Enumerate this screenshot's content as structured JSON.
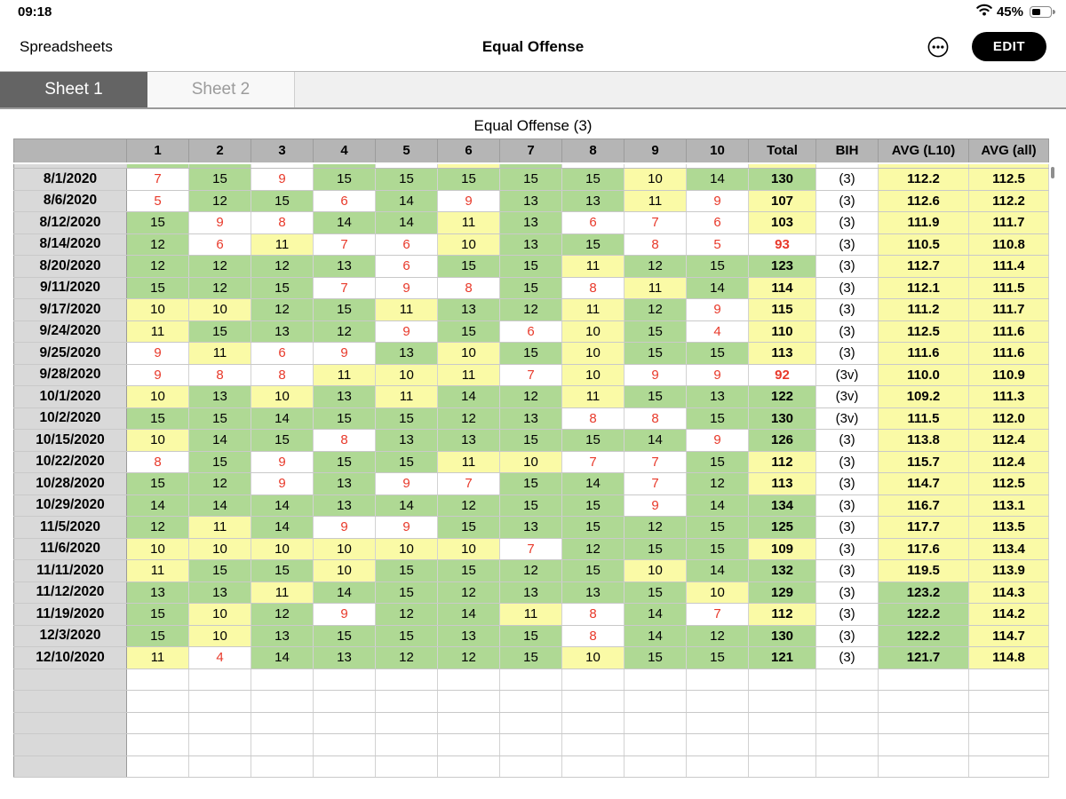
{
  "status_bar": {
    "time": "09:18",
    "battery_label": "45%",
    "wifi_icon": "wifi-icon",
    "battery_icon": "battery-icon"
  },
  "nav": {
    "back_label": "Spreadsheets",
    "title": "Equal Offense",
    "more_icon": "ellipsis-circle-icon",
    "edit_label": "EDIT"
  },
  "tabs": [
    {
      "label": "Sheet 1",
      "selected": true
    },
    {
      "label": "Sheet 2",
      "selected": false
    }
  ],
  "sheet": {
    "title": "Equal Offense (3)",
    "columns": [
      "",
      "1",
      "2",
      "3",
      "4",
      "5",
      "6",
      "7",
      "8",
      "9",
      "10",
      "Total",
      "BIH",
      "AVG (L10)",
      "AVG (all)"
    ],
    "scrolled_row_colors": [
      "D",
      "G",
      "G",
      "W",
      "G",
      "W",
      "Y",
      "G",
      "W",
      "W",
      "W",
      "Y",
      "W",
      "Y",
      "Y"
    ],
    "rows": [
      {
        "date": "8/1/2020",
        "scores": [
          7,
          15,
          9,
          15,
          15,
          15,
          15,
          15,
          10,
          14
        ],
        "total": 130,
        "bih": "(3)",
        "avg_l10": "112.2",
        "avg_all": "112.5"
      },
      {
        "date": "8/6/2020",
        "scores": [
          5,
          12,
          15,
          6,
          14,
          9,
          13,
          13,
          11,
          9
        ],
        "total": 107,
        "bih": "(3)",
        "avg_l10": "112.6",
        "avg_all": "112.2"
      },
      {
        "date": "8/12/2020",
        "scores": [
          15,
          9,
          8,
          14,
          14,
          11,
          13,
          6,
          7,
          6
        ],
        "total": 103,
        "bih": "(3)",
        "avg_l10": "111.9",
        "avg_all": "111.7"
      },
      {
        "date": "8/14/2020",
        "scores": [
          12,
          6,
          11,
          7,
          6,
          10,
          13,
          15,
          8,
          5
        ],
        "total": 93,
        "bih": "(3)",
        "avg_l10": "110.5",
        "avg_all": "110.8"
      },
      {
        "date": "8/20/2020",
        "scores": [
          12,
          12,
          12,
          13,
          6,
          15,
          15,
          11,
          12,
          15
        ],
        "total": 123,
        "bih": "(3)",
        "avg_l10": "112.7",
        "avg_all": "111.4"
      },
      {
        "date": "9/11/2020",
        "scores": [
          15,
          12,
          15,
          7,
          9,
          8,
          15,
          8,
          11,
          14
        ],
        "total": 114,
        "bih": "(3)",
        "avg_l10": "112.1",
        "avg_all": "111.5"
      },
      {
        "date": "9/17/2020",
        "scores": [
          10,
          10,
          12,
          15,
          11,
          13,
          12,
          11,
          12,
          9
        ],
        "total": 115,
        "bih": "(3)",
        "avg_l10": "111.2",
        "avg_all": "111.7"
      },
      {
        "date": "9/24/2020",
        "scores": [
          11,
          15,
          13,
          12,
          9,
          15,
          6,
          10,
          15,
          4
        ],
        "total": 110,
        "bih": "(3)",
        "avg_l10": "112.5",
        "avg_all": "111.6"
      },
      {
        "date": "9/25/2020",
        "scores": [
          9,
          11,
          6,
          9,
          13,
          10,
          15,
          10,
          15,
          15
        ],
        "total": 113,
        "bih": "(3)",
        "avg_l10": "111.6",
        "avg_all": "111.6"
      },
      {
        "date": "9/28/2020",
        "scores": [
          9,
          8,
          8,
          11,
          10,
          11,
          7,
          10,
          9,
          9
        ],
        "total": 92,
        "bih": "(3v)",
        "avg_l10": "110.0",
        "avg_all": "110.9"
      },
      {
        "date": "10/1/2020",
        "scores": [
          10,
          13,
          10,
          13,
          11,
          14,
          12,
          11,
          15,
          13
        ],
        "total": 122,
        "bih": "(3v)",
        "avg_l10": "109.2",
        "avg_all": "111.3"
      },
      {
        "date": "10/2/2020",
        "scores": [
          15,
          15,
          14,
          15,
          15,
          12,
          13,
          8,
          8,
          15
        ],
        "total": 130,
        "bih": "(3v)",
        "avg_l10": "111.5",
        "avg_all": "112.0"
      },
      {
        "date": "10/15/2020",
        "scores": [
          10,
          14,
          15,
          8,
          13,
          13,
          15,
          15,
          14,
          9
        ],
        "total": 126,
        "bih": "(3)",
        "avg_l10": "113.8",
        "avg_all": "112.4"
      },
      {
        "date": "10/22/2020",
        "scores": [
          8,
          15,
          9,
          15,
          15,
          11,
          10,
          7,
          7,
          15
        ],
        "total": 112,
        "bih": "(3)",
        "avg_l10": "115.7",
        "avg_all": "112.4"
      },
      {
        "date": "10/28/2020",
        "scores": [
          15,
          12,
          9,
          13,
          9,
          7,
          15,
          14,
          7,
          12
        ],
        "total": 113,
        "bih": "(3)",
        "avg_l10": "114.7",
        "avg_all": "112.5"
      },
      {
        "date": "10/29/2020",
        "scores": [
          14,
          14,
          14,
          13,
          14,
          12,
          15,
          15,
          9,
          14
        ],
        "total": 134,
        "bih": "(3)",
        "avg_l10": "116.7",
        "avg_all": "113.1"
      },
      {
        "date": "11/5/2020",
        "scores": [
          12,
          11,
          14,
          9,
          9,
          15,
          13,
          15,
          12,
          15
        ],
        "total": 125,
        "bih": "(3)",
        "avg_l10": "117.7",
        "avg_all": "113.5"
      },
      {
        "date": "11/6/2020",
        "scores": [
          10,
          10,
          10,
          10,
          10,
          10,
          7,
          12,
          15,
          15
        ],
        "total": 109,
        "bih": "(3)",
        "avg_l10": "117.6",
        "avg_all": "113.4"
      },
      {
        "date": "11/11/2020",
        "scores": [
          11,
          15,
          15,
          10,
          15,
          15,
          12,
          15,
          10,
          14
        ],
        "total": 132,
        "bih": "(3)",
        "avg_l10": "119.5",
        "avg_all": "113.9"
      },
      {
        "date": "11/12/2020",
        "scores": [
          13,
          13,
          11,
          14,
          15,
          12,
          13,
          13,
          15,
          10
        ],
        "total": 129,
        "bih": "(3)",
        "avg_l10": "123.2",
        "avg_all": "114.3"
      },
      {
        "date": "11/19/2020",
        "scores": [
          15,
          10,
          12,
          9,
          12,
          14,
          11,
          8,
          14,
          7
        ],
        "total": 112,
        "bih": "(3)",
        "avg_l10": "122.2",
        "avg_all": "114.2"
      },
      {
        "date": "12/3/2020",
        "scores": [
          15,
          10,
          13,
          15,
          15,
          13,
          15,
          8,
          14,
          12
        ],
        "total": 130,
        "bih": "(3)",
        "avg_l10": "122.2",
        "avg_all": "114.7"
      },
      {
        "date": "12/10/2020",
        "scores": [
          11,
          4,
          14,
          13,
          12,
          12,
          15,
          10,
          15,
          15
        ],
        "total": 121,
        "bih": "(3)",
        "avg_l10": "121.7",
        "avg_all": "114.8"
      }
    ],
    "empty_rows": 5,
    "palette": {
      "green": "#afd994",
      "yellow": "#fafaa6",
      "white": "#ffffff",
      "red_text": "#e8392a",
      "header_gray": "#b5b5b5",
      "row_header_gray": "#d9d9d9",
      "selected_tab_gray": "#646464"
    },
    "rules": {
      "score_low_max": 9,
      "score_mid_max": 11,
      "total_low_max": 99,
      "total_mid_max": 119,
      "avg_green_min": 120
    }
  }
}
